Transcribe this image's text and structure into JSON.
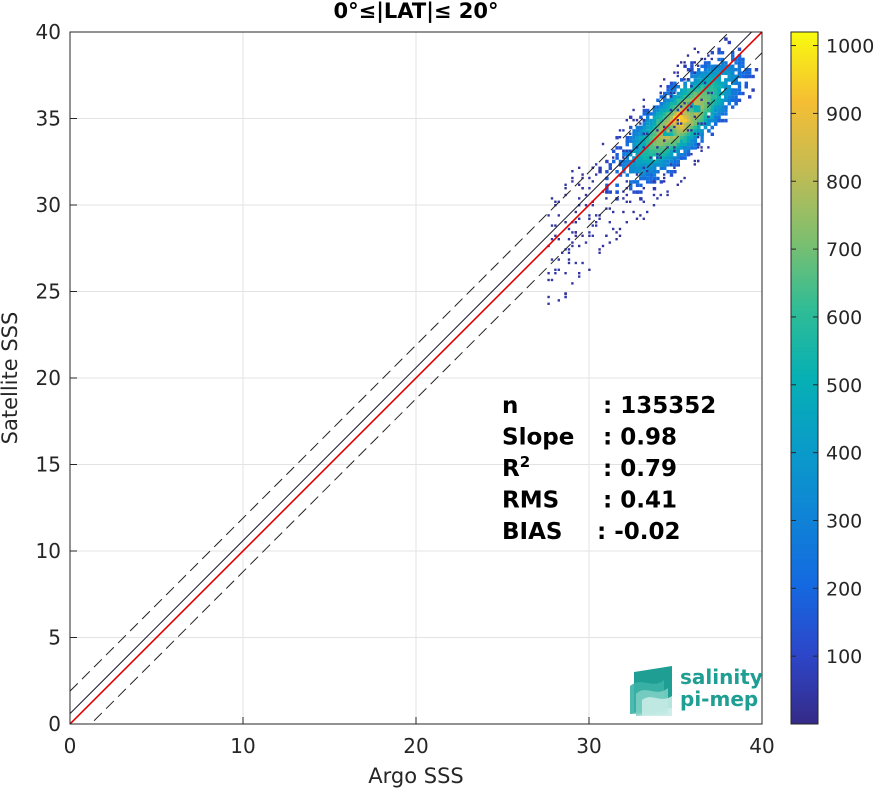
{
  "chart_data": {
    "type": "heatmap",
    "title": "0°≤|LAT|≤ 20°",
    "xlabel": "Argo SSS",
    "ylabel": "Satellite SSS",
    "xlim": [
      0,
      40
    ],
    "ylim": [
      0,
      40
    ],
    "xticks": [
      "0",
      "10",
      "20",
      "30",
      "40"
    ],
    "yticks": [
      "0",
      "5",
      "10",
      "15",
      "20",
      "25",
      "30",
      "35",
      "40"
    ],
    "grid": true,
    "colormap": "parula",
    "colorbar": {
      "min": 0,
      "max": 1020,
      "ticks": [
        "100",
        "200",
        "300",
        "400",
        "500",
        "600",
        "700",
        "800",
        "900",
        "1000"
      ]
    },
    "lines": [
      {
        "name": "1:1 line",
        "color": "#1a1a2e",
        "style": "solid",
        "intercept": 0.6,
        "slope": 1.0
      },
      {
        "name": "regression",
        "color": "#e00000",
        "style": "solid",
        "intercept": 0.0,
        "slope": 1.0
      },
      {
        "name": "upper bound",
        "color": "#222222",
        "style": "dashed",
        "intercept": 1.9,
        "slope": 1.0
      },
      {
        "name": "lower bound",
        "color": "#222222",
        "style": "dashed",
        "intercept": -1.2,
        "slope": 1.0
      }
    ],
    "density_cluster": {
      "center_x": 35.2,
      "center_y": 35.0,
      "peak_count": 1000,
      "x_range": [
        27,
        37.5
      ],
      "y_range": [
        22,
        39
      ]
    },
    "stats": [
      {
        "label": "n",
        "value": ": 135352"
      },
      {
        "label": "Slope",
        "value": ": 0.98"
      },
      {
        "label": "R",
        "sup": "2",
        "value": ": 0.79"
      },
      {
        "label": "RMS",
        "value": ": 0.41"
      },
      {
        "label": "BIAS",
        "value": ": -0.02"
      }
    ]
  },
  "logo": {
    "line1": "salinity",
    "line2": "pi-mep"
  }
}
